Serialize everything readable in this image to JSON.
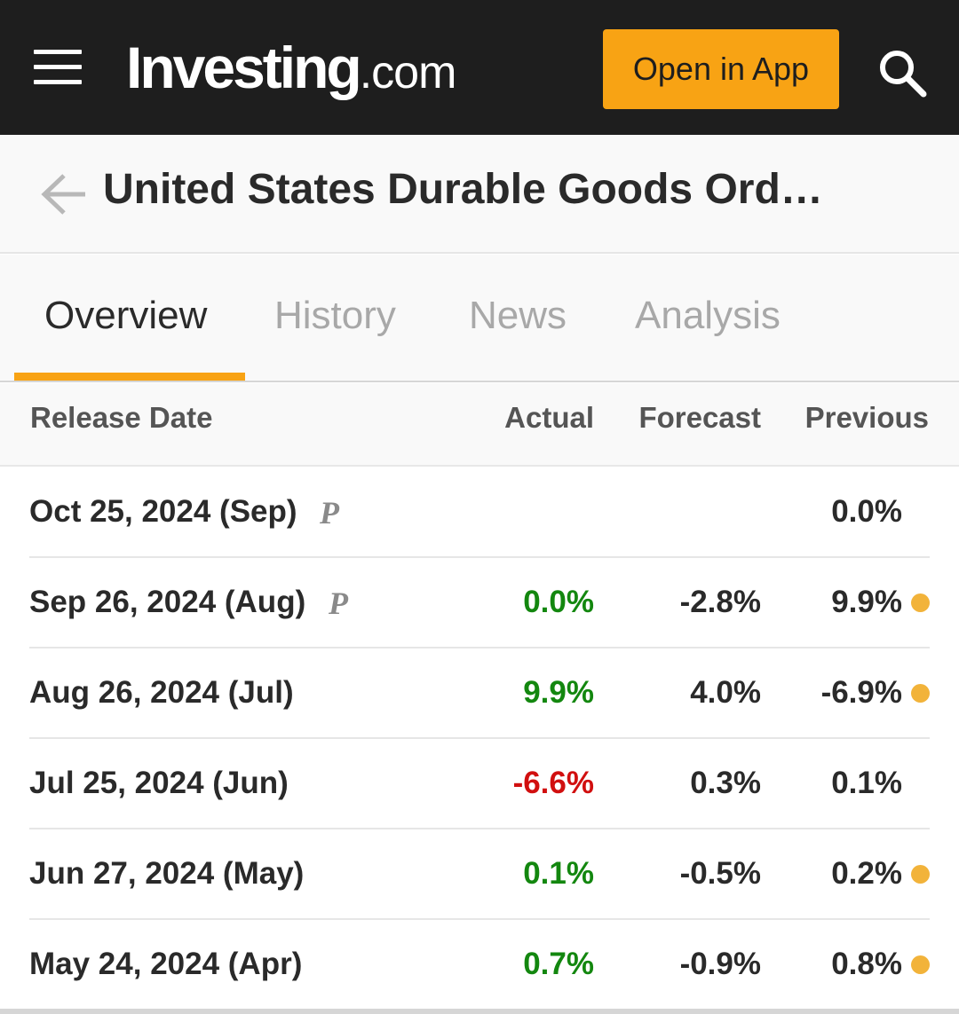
{
  "header": {
    "logo_main": "Investing",
    "logo_suffix": ".com",
    "open_app_label": "Open in App",
    "accent_color": "#f8a314",
    "background_color": "#1e1e1e"
  },
  "page": {
    "title": "United States Durable Goods Ord…"
  },
  "tabs": [
    {
      "label": "Overview",
      "active": true
    },
    {
      "label": "History",
      "active": false
    },
    {
      "label": "News",
      "active": false
    },
    {
      "label": "Analysis",
      "active": false
    }
  ],
  "table": {
    "columns": {
      "release_date": "Release Date",
      "actual": "Actual",
      "forecast": "Forecast",
      "previous": "Previous"
    },
    "rows": [
      {
        "date": "Oct 25, 2024 (Sep)",
        "preliminary": "P",
        "actual": "",
        "actual_color": "#2a2a2a",
        "forecast": "",
        "previous": "0.0%",
        "revised": false
      },
      {
        "date": "Sep 26, 2024 (Aug)",
        "preliminary": "P",
        "actual": "0.0%",
        "actual_color": "#13870f",
        "forecast": "-2.8%",
        "previous": "9.9%",
        "revised": true
      },
      {
        "date": "Aug 26, 2024 (Jul)",
        "preliminary": "",
        "actual": "9.9%",
        "actual_color": "#13870f",
        "forecast": "4.0%",
        "previous": "-6.9%",
        "revised": true
      },
      {
        "date": "Jul 25, 2024 (Jun)",
        "preliminary": "",
        "actual": "-6.6%",
        "actual_color": "#d10f0f",
        "forecast": "0.3%",
        "previous": "0.1%",
        "revised": false
      },
      {
        "date": "Jun 27, 2024 (May)",
        "preliminary": "",
        "actual": "0.1%",
        "actual_color": "#13870f",
        "forecast": "-0.5%",
        "previous": "0.2%",
        "revised": true
      },
      {
        "date": "May 24, 2024 (Apr)",
        "preliminary": "",
        "actual": "0.7%",
        "actual_color": "#13870f",
        "forecast": "-0.9%",
        "previous": "0.8%",
        "revised": true
      }
    ]
  },
  "icons": {
    "menu": "hamburger-menu-icon",
    "search": "search-icon",
    "back": "back-arrow-icon",
    "revised": "revised-dot-icon"
  }
}
